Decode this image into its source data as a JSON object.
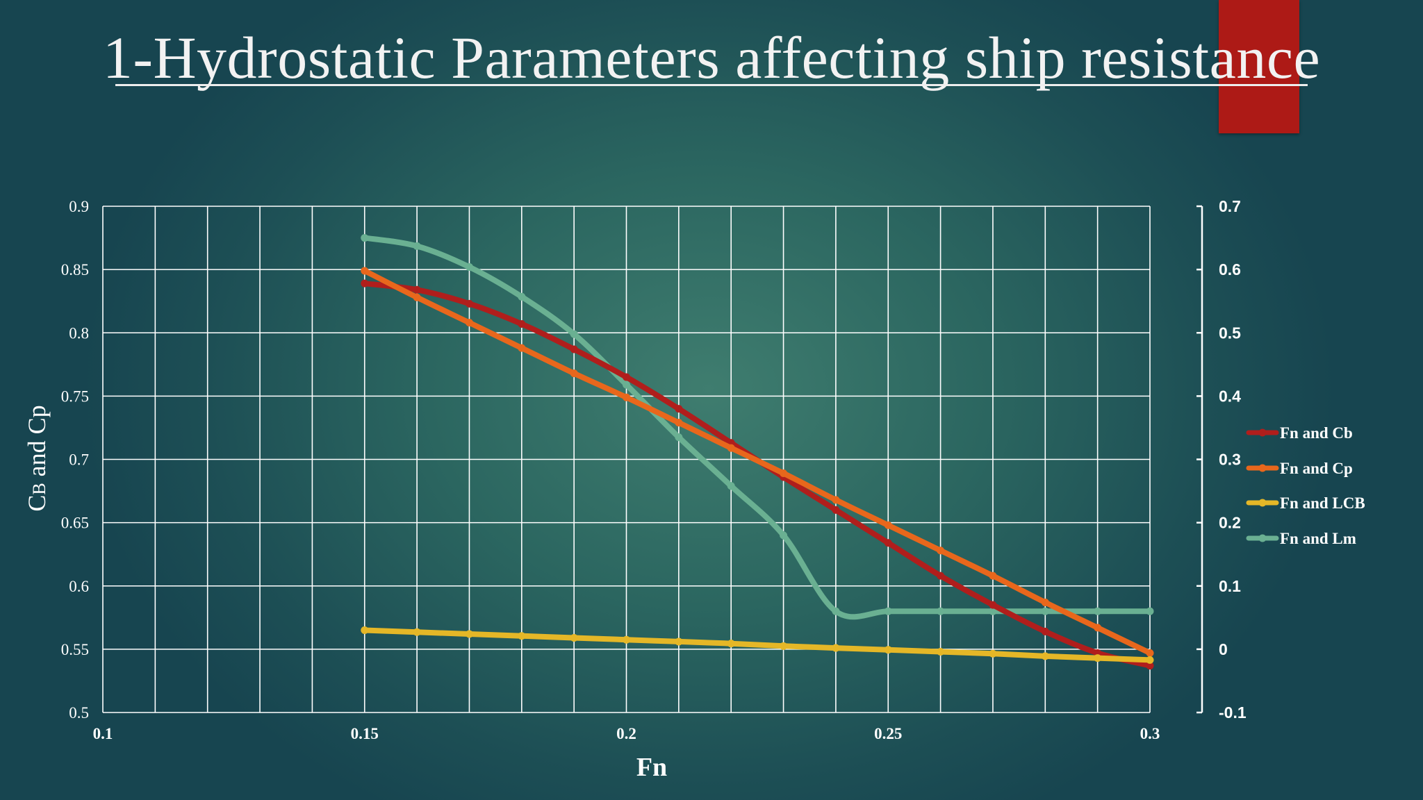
{
  "title": "1-Hydrostatic Parameters affecting ship resistance",
  "colors": {
    "accent_bar": "#ad1a16",
    "grid": "#ffffff"
  },
  "chart_data": {
    "type": "line",
    "xlabel": "Fn",
    "ylabel": "CB and Cp",
    "ylabel_parts": {
      "main": "C",
      "sub": "B",
      "rest": " and Cp"
    },
    "xlim": [
      0.1,
      0.3
    ],
    "ylim": [
      0.5,
      0.9
    ],
    "y2lim": [
      -0.1,
      0.7
    ],
    "x_ticks": [
      "0.1",
      "0.15",
      "0.2",
      "0.25",
      "0.3"
    ],
    "y_ticks": [
      "0.5",
      "0.55",
      "0.6",
      "0.65",
      "0.7",
      "0.75",
      "0.8",
      "0.85",
      "0.9"
    ],
    "y2_ticks": [
      "-0.1",
      "0",
      "0.1",
      "0.2",
      "0.3",
      "0.4",
      "0.5",
      "0.6",
      "0.7"
    ],
    "grid": true,
    "legend_position": "right",
    "x": [
      0.15,
      0.16,
      0.17,
      0.18,
      0.19,
      0.2,
      0.21,
      0.22,
      0.23,
      0.24,
      0.25,
      0.26,
      0.27,
      0.28,
      0.29,
      0.3
    ],
    "series": [
      {
        "name": "Fn and Cb",
        "color": "#b01e1c",
        "axis": "left",
        "values": [
          0.839,
          0.834,
          0.823,
          0.807,
          0.787,
          0.765,
          0.74,
          0.713,
          0.686,
          0.66,
          0.634,
          0.608,
          0.585,
          0.564,
          0.547,
          0.537
        ]
      },
      {
        "name": "Fn and Cp",
        "color": "#e8671c",
        "axis": "left",
        "values": [
          0.849,
          0.828,
          0.808,
          0.788,
          0.768,
          0.749,
          0.729,
          0.709,
          0.689,
          0.668,
          0.648,
          0.628,
          0.608,
          0.587,
          0.567,
          0.547
        ]
      },
      {
        "name": "Fn and LCB",
        "color": "#e5b727",
        "axis": "right",
        "values": [
          0.03,
          0.027,
          0.024,
          0.021,
          0.018,
          0.015,
          0.012,
          0.009,
          0.005,
          0.002,
          -0.001,
          -0.004,
          -0.007,
          -0.011,
          -0.014,
          -0.017
        ]
      },
      {
        "name": "Fn and Lm",
        "color": "#6ab092",
        "axis": "right",
        "values": [
          0.65,
          0.637,
          0.604,
          0.557,
          0.498,
          0.418,
          0.335,
          0.258,
          0.18,
          0.06,
          0.06,
          0.06,
          0.06,
          0.06,
          0.06,
          0.06
        ]
      }
    ]
  }
}
